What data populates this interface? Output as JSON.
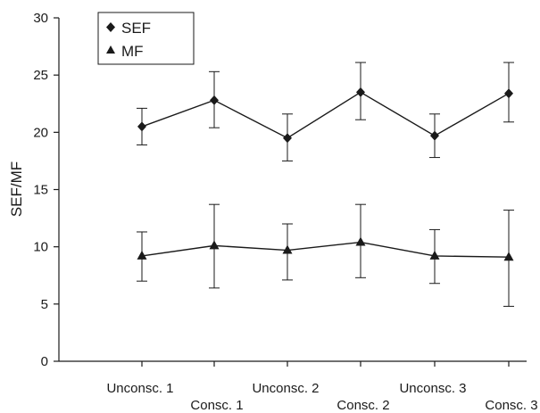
{
  "chart_data": {
    "type": "line",
    "categories": [
      "Unconsc. 1",
      "Consc. 1",
      "Unconsc. 2",
      "Consc. 2",
      "Unconsc. 3",
      "Consc. 3"
    ],
    "title": "",
    "xlabel": "",
    "ylabel": "SEF/MF",
    "ylim": [
      0,
      30
    ],
    "yticks": [
      0,
      5,
      10,
      15,
      20,
      25,
      30
    ],
    "grid": false,
    "legend_position": "top-left",
    "series": [
      {
        "name": "SEF",
        "marker": "diamond",
        "values": [
          20.5,
          22.8,
          19.5,
          23.5,
          19.7,
          23.4
        ],
        "err_low": [
          18.9,
          20.4,
          17.5,
          21.1,
          17.8,
          20.9
        ],
        "err_high": [
          22.1,
          25.3,
          21.6,
          26.1,
          21.6,
          26.1
        ]
      },
      {
        "name": "MF",
        "marker": "triangle",
        "values": [
          9.2,
          10.1,
          9.7,
          10.4,
          9.2,
          9.1
        ],
        "err_low": [
          7.0,
          6.4,
          7.1,
          7.3,
          6.8,
          4.8
        ],
        "err_high": [
          11.3,
          13.7,
          12.0,
          13.7,
          11.5,
          13.2
        ]
      }
    ],
    "colors": {
      "ink": "#1a1a1a"
    }
  }
}
